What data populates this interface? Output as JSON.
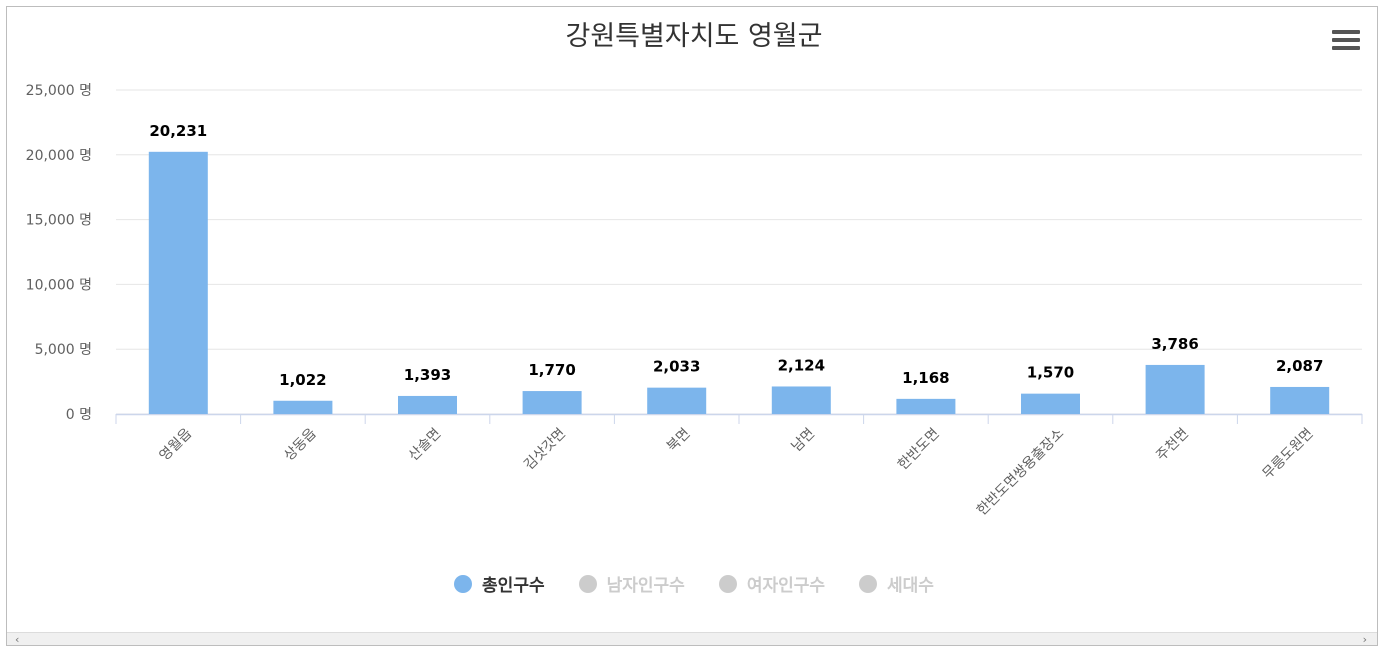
{
  "chart_data": {
    "type": "bar",
    "title": "강원특별자치도 영월군",
    "categories": [
      "영월읍",
      "상동읍",
      "산솔면",
      "김삿갓면",
      "북면",
      "남면",
      "한반도면",
      "한반도면쌍용출장소",
      "주천면",
      "무릉도원면"
    ],
    "series": [
      {
        "name": "총인구수",
        "values": [
          20231,
          1022,
          1393,
          1770,
          2033,
          2124,
          1168,
          1570,
          3786,
          2087
        ]
      }
    ],
    "data_labels": [
      "20,231",
      "1,022",
      "1,393",
      "1,770",
      "2,033",
      "2,124",
      "1,168",
      "1,570",
      "3,786",
      "2,087"
    ],
    "y_ticks": [
      0,
      5000,
      10000,
      15000,
      20000,
      25000
    ],
    "y_tick_labels": [
      "0 명",
      "5,000 명",
      "10,000 명",
      "15,000 명",
      "20,000 명",
      "25,000 명"
    ],
    "ylim": [
      0,
      25000
    ],
    "xlabel": "",
    "ylabel": "",
    "grid": true,
    "legend_position": "bottom",
    "bar_color": "#7cb5ec"
  },
  "legend": [
    {
      "label": "총인구수",
      "color": "#7cb5ec",
      "active": true
    },
    {
      "label": "남자인구수",
      "color": "#cccccc",
      "active": false
    },
    {
      "label": "여자인구수",
      "color": "#cccccc",
      "active": false
    },
    {
      "label": "세대수",
      "color": "#cccccc",
      "active": false
    }
  ],
  "menu_icon": "hamburger-menu-icon",
  "scrollbar": {
    "left_icon": "‹",
    "right_icon": "›"
  }
}
